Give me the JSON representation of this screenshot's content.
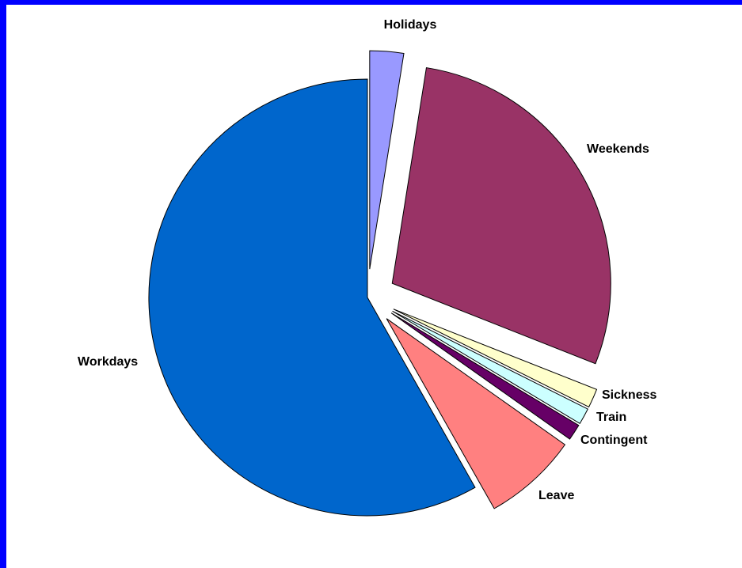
{
  "chart_data": {
    "type": "pie",
    "title": "",
    "exploded": true,
    "slices": [
      {
        "label": "Holidays",
        "value": 2.5,
        "color": "#9999ff"
      },
      {
        "label": "Weekends",
        "value": 28.5,
        "color": "#993366"
      },
      {
        "label": "Sickness",
        "value": 1.4,
        "color": "#ffffcc"
      },
      {
        "label": "Train",
        "value": 1.2,
        "color": "#ccffff"
      },
      {
        "label": "Contingent",
        "value": 1.2,
        "color": "#660066"
      },
      {
        "label": "Leave",
        "value": 7.0,
        "color": "#ff8080"
      },
      {
        "label": "Workdays",
        "value": 58.2,
        "color": "#0066cc"
      }
    ]
  }
}
